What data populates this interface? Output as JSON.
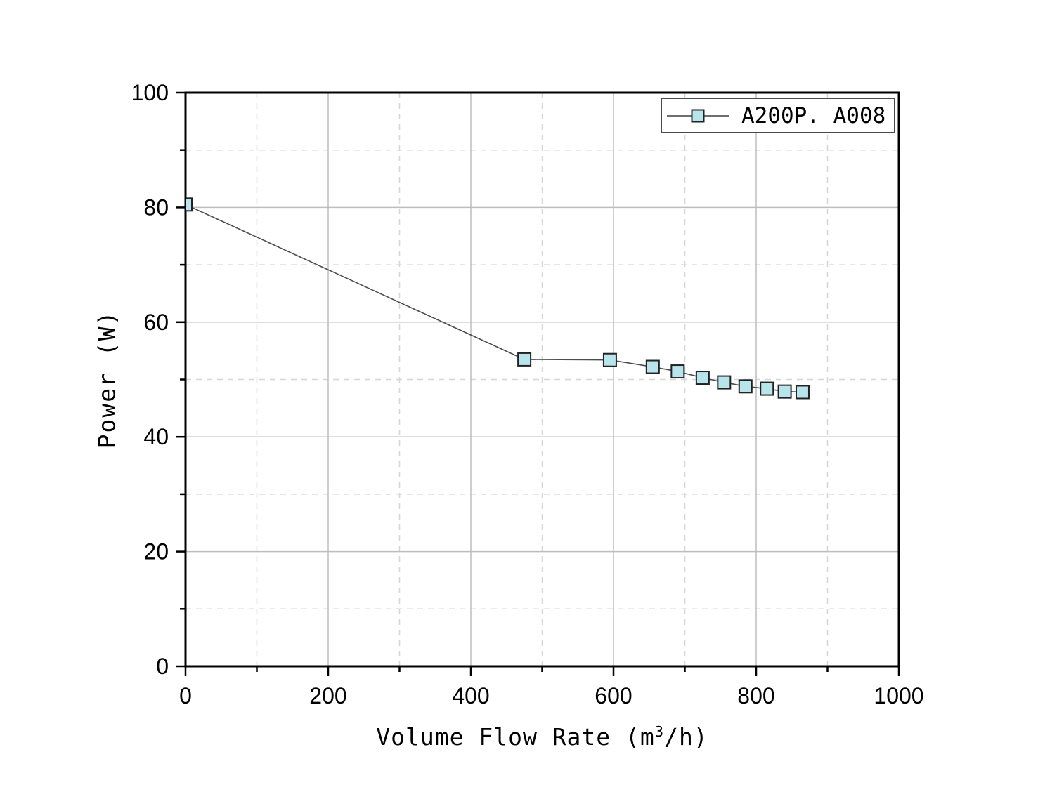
{
  "chart_data": {
    "type": "line",
    "title": "",
    "xlabel_full": "Volume Flow Rate (m3/h)",
    "xlabel_parts": {
      "pre": "Volume Flow Rate (m",
      "sup": "3",
      "post": "/h)"
    },
    "ylabel": "Power (W)",
    "xlim": [
      0,
      1000
    ],
    "ylim": [
      0,
      100
    ],
    "x_major_ticks": [
      0,
      200,
      400,
      600,
      800,
      1000
    ],
    "x_minor_ticks": [
      100,
      300,
      500,
      700,
      900
    ],
    "y_major_ticks": [
      0,
      20,
      40,
      60,
      80,
      100
    ],
    "y_minor_ticks": [
      10,
      30,
      50,
      70,
      90
    ],
    "grid": {
      "major_style": "solid",
      "minor_style": "dashed",
      "major_color": "#bdbdbd",
      "minor_color": "#d6d6d6"
    },
    "legend_position": "top-right",
    "series": [
      {
        "name": "A200P. A008",
        "marker": "square",
        "marker_fill": "#b8e4ec",
        "marker_edge": "#222222",
        "line_color": "#4d4d4d",
        "points": [
          [
            0,
            80.5
          ],
          [
            475,
            53.5
          ],
          [
            595,
            53.4
          ],
          [
            655,
            52.2
          ],
          [
            690,
            51.4
          ],
          [
            725,
            50.3
          ],
          [
            755,
            49.5
          ],
          [
            785,
            48.8
          ],
          [
            815,
            48.4
          ],
          [
            840,
            47.9
          ],
          [
            865,
            47.8
          ]
        ]
      }
    ],
    "colors": {
      "axis": "#000000",
      "text": "#000000",
      "background": "#ffffff"
    }
  }
}
